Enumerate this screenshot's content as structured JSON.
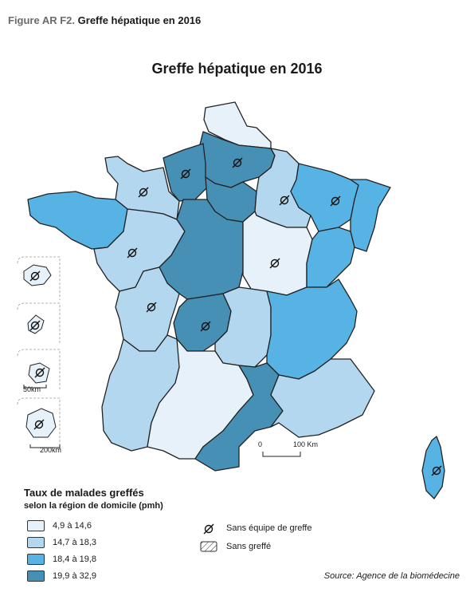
{
  "figure": {
    "label": "Figure AR F2.",
    "caption": "Greffe hépatique en 2016"
  },
  "map_title": "Greffe hépatique en 2016",
  "legend": {
    "title": "Taux de malades greffés",
    "subtitle": "selon la région de domicile (pmh)",
    "classes": [
      {
        "label": "4,9 à 14,6",
        "color": "#e6f1fa"
      },
      {
        "label": "14,7 à 18,3",
        "color": "#b3d7ee"
      },
      {
        "label": "18,4 à 19,8",
        "color": "#56b3e3"
      },
      {
        "label": "19,9 à 32,9",
        "color": "#4690b5"
      }
    ],
    "symbols": [
      {
        "icon": "no-team-symbol",
        "label": "Sans équipe de greffe"
      },
      {
        "icon": "hatched-box",
        "label": "Sans greffé"
      }
    ]
  },
  "scale_bar": {
    "start": "0",
    "end": "100 Km"
  },
  "inset_scales": {
    "a": "50km",
    "b": "200km"
  },
  "source": "Source: Agence de la biomédecine",
  "regions": [
    {
      "id": "nord",
      "class": 0,
      "no_team": false
    },
    {
      "id": "picardie",
      "class": 3,
      "no_team": true
    },
    {
      "id": "haute-normandie",
      "class": 3,
      "no_team": true
    },
    {
      "id": "basse-normandie",
      "class": 1,
      "no_team": true
    },
    {
      "id": "bretagne",
      "class": 2,
      "no_team": false
    },
    {
      "id": "pays-de-la-loire",
      "class": 1,
      "no_team": true
    },
    {
      "id": "centre",
      "class": 3,
      "no_team": false
    },
    {
      "id": "ile-de-france",
      "class": 3,
      "no_team": false
    },
    {
      "id": "champagne-ardenne",
      "class": 1,
      "no_team": true
    },
    {
      "id": "lorraine",
      "class": 2,
      "no_team": true
    },
    {
      "id": "alsace",
      "class": 2,
      "no_team": false
    },
    {
      "id": "bourgogne",
      "class": 0,
      "no_team": true
    },
    {
      "id": "franche-comte",
      "class": 2,
      "no_team": false
    },
    {
      "id": "poitou-charentes",
      "class": 1,
      "no_team": true
    },
    {
      "id": "limousin",
      "class": 3,
      "no_team": true
    },
    {
      "id": "auvergne",
      "class": 1,
      "no_team": false
    },
    {
      "id": "rhone-alpes",
      "class": 2,
      "no_team": false
    },
    {
      "id": "aquitaine",
      "class": 1,
      "no_team": false
    },
    {
      "id": "midi-pyrenees",
      "class": 0,
      "no_team": false
    },
    {
      "id": "languedoc-roussillon",
      "class": 3,
      "no_team": false
    },
    {
      "id": "paca",
      "class": 1,
      "no_team": false
    },
    {
      "id": "corse",
      "class": 2,
      "no_team": true
    },
    {
      "id": "guadeloupe",
      "class": 0,
      "no_team": true
    },
    {
      "id": "martinique",
      "class": 0,
      "no_team": true
    },
    {
      "id": "guyane",
      "class": 0,
      "no_team": true
    },
    {
      "id": "reunion",
      "class": 0,
      "no_team": true
    }
  ]
}
